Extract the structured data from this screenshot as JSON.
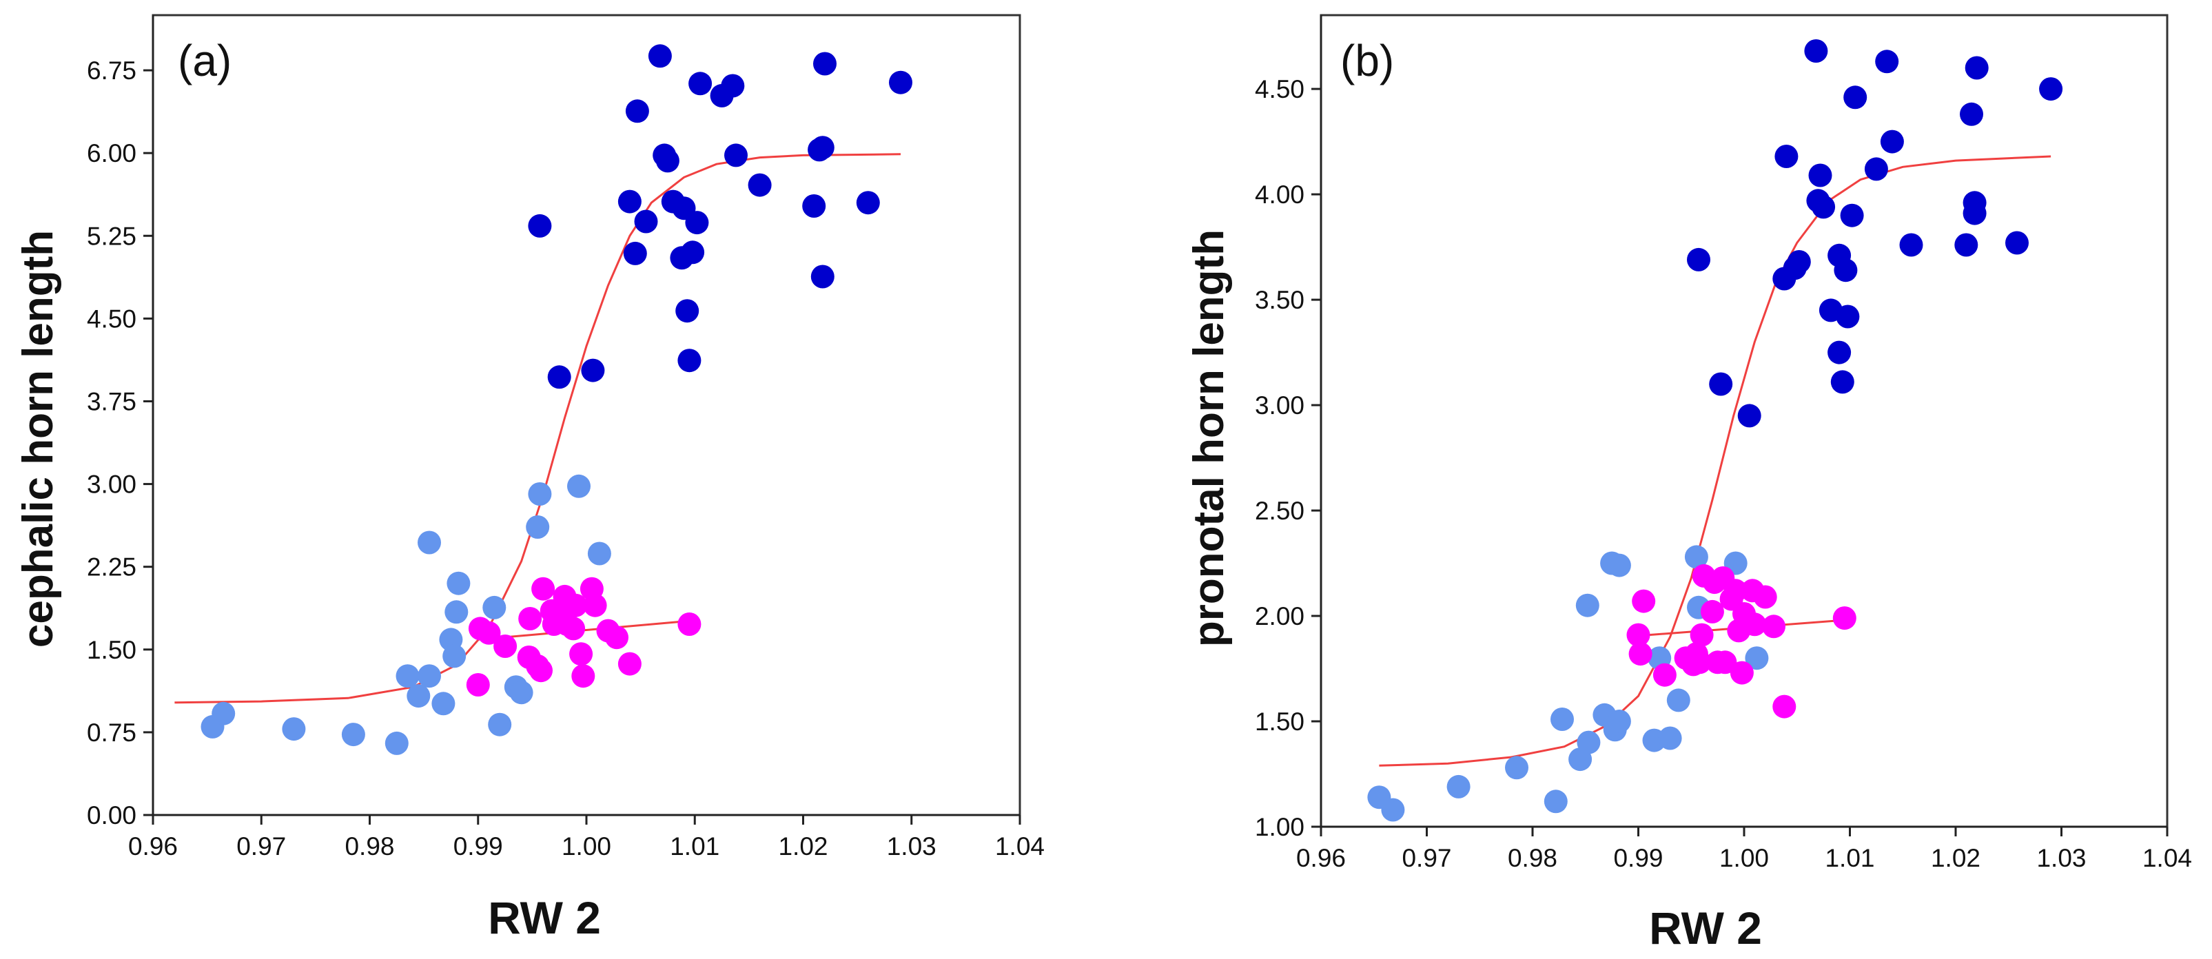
{
  "chart_data": [
    {
      "type": "scatter",
      "panel_label": "(a)",
      "xlabel": "RW 2",
      "ylabel": "cephalic horn length",
      "xlim": [
        0.96,
        1.04
      ],
      "ylim": [
        0,
        7.25
      ],
      "x_ticks": [
        "0.96",
        "0.97",
        "0.98",
        "0.99",
        "1.00",
        "1.01",
        "1.02",
        "1.03",
        "1.04"
      ],
      "y_ticks": [
        "0.00",
        "0.75",
        "1.50",
        "2.25",
        "3.00",
        "3.75",
        "4.50",
        "5.25",
        "6.00",
        "6.75"
      ],
      "series": [
        {
          "name": "light blue",
          "color": "#6495ED",
          "points": [
            [
              0.9655,
              0.8
            ],
            [
              0.9665,
              0.92
            ],
            [
              0.973,
              0.78
            ],
            [
              0.9785,
              0.73
            ],
            [
              0.9825,
              0.65
            ],
            [
              0.9835,
              1.26
            ],
            [
              0.9845,
              1.08
            ],
            [
              0.9855,
              1.26
            ],
            [
              0.9855,
              2.47
            ],
            [
              0.9868,
              1.01
            ],
            [
              0.9875,
              1.59
            ],
            [
              0.9878,
              1.44
            ],
            [
              0.988,
              1.84
            ],
            [
              0.9882,
              2.1
            ],
            [
              0.9915,
              1.88
            ],
            [
              0.992,
              0.82
            ],
            [
              0.9935,
              1.16
            ],
            [
              0.994,
              1.11
            ],
            [
              0.9955,
              2.61
            ],
            [
              0.9957,
              2.91
            ],
            [
              0.9993,
              2.98
            ],
            [
              1.0012,
              2.37
            ]
          ]
        },
        {
          "name": "magenta",
          "color": "#FF00FF",
          "points": [
            [
              0.99,
              1.18
            ],
            [
              0.9902,
              1.69
            ],
            [
              0.991,
              1.65
            ],
            [
              0.9925,
              1.53
            ],
            [
              0.9947,
              1.43
            ],
            [
              0.9948,
              1.78
            ],
            [
              0.9955,
              1.35
            ],
            [
              0.9958,
              1.31
            ],
            [
              0.996,
              2.05
            ],
            [
              0.9968,
              1.85
            ],
            [
              0.997,
              1.73
            ],
            [
              0.9972,
              1.82
            ],
            [
              0.9975,
              1.78
            ],
            [
              0.998,
              1.98
            ],
            [
              0.9982,
              1.73
            ],
            [
              0.9985,
              1.88
            ],
            [
              0.9988,
              1.69
            ],
            [
              0.999,
              1.9
            ],
            [
              0.9995,
              1.46
            ],
            [
              0.9997,
              1.26
            ],
            [
              1.0005,
              2.05
            ],
            [
              1.0008,
              1.9
            ],
            [
              1.002,
              1.67
            ],
            [
              1.0028,
              1.61
            ],
            [
              1.004,
              1.37
            ],
            [
              1.0095,
              1.73
            ]
          ]
        },
        {
          "name": "dark blue",
          "color": "#0000CD",
          "points": [
            [
              0.9957,
              5.34
            ],
            [
              0.9975,
              3.97
            ],
            [
              1.0006,
              4.03
            ],
            [
              1.004,
              5.56
            ],
            [
              1.0045,
              5.09
            ],
            [
              1.0047,
              6.38
            ],
            [
              1.0055,
              5.38
            ],
            [
              1.0068,
              6.88
            ],
            [
              1.0072,
              5.98
            ],
            [
              1.0075,
              5.93
            ],
            [
              1.008,
              5.56
            ],
            [
              1.0088,
              5.05
            ],
            [
              1.009,
              5.5
            ],
            [
              1.0093,
              4.57
            ],
            [
              1.0095,
              4.12
            ],
            [
              1.0098,
              5.1
            ],
            [
              1.0102,
              5.37
            ],
            [
              1.0105,
              6.63
            ],
            [
              1.0125,
              6.52
            ],
            [
              1.0135,
              6.61
            ],
            [
              1.0138,
              5.98
            ],
            [
              1.016,
              5.71
            ],
            [
              1.021,
              5.52
            ],
            [
              1.0215,
              6.03
            ],
            [
              1.0218,
              6.05
            ],
            [
              1.0218,
              4.88
            ],
            [
              1.022,
              6.81
            ],
            [
              1.026,
              5.55
            ],
            [
              1.029,
              6.64
            ]
          ]
        }
      ],
      "curve": {
        "name": "sigmoid fit",
        "color": "#F04040",
        "points": [
          [
            0.962,
            1.02
          ],
          [
            0.97,
            1.03
          ],
          [
            0.978,
            1.06
          ],
          [
            0.984,
            1.16
          ],
          [
            0.988,
            1.36
          ],
          [
            0.991,
            1.7
          ],
          [
            0.994,
            2.3
          ],
          [
            0.996,
            2.9
          ],
          [
            0.998,
            3.6
          ],
          [
            1.0,
            4.25
          ],
          [
            1.002,
            4.8
          ],
          [
            1.004,
            5.25
          ],
          [
            1.006,
            5.55
          ],
          [
            1.009,
            5.78
          ],
          [
            1.012,
            5.9
          ],
          [
            1.016,
            5.96
          ],
          [
            1.02,
            5.98
          ],
          [
            1.029,
            5.99
          ]
        ]
      },
      "line": {
        "name": "linear fit",
        "color": "#F04040",
        "points": [
          [
            0.99,
            1.59
          ],
          [
            1.0095,
            1.76
          ]
        ]
      }
    },
    {
      "type": "scatter",
      "panel_label": "(b)",
      "xlabel": "RW 2",
      "ylabel": "pronotal horn length",
      "xlim": [
        0.96,
        1.04
      ],
      "ylim": [
        1.0,
        4.85
      ],
      "x_ticks": [
        "0.96",
        "0.97",
        "0.98",
        "0.99",
        "1.00",
        "1.01",
        "1.02",
        "1.03",
        "1.04"
      ],
      "y_ticks": [
        "1.00",
        "1.50",
        "2.00",
        "2.50",
        "3.00",
        "3.50",
        "4.00",
        "4.50"
      ],
      "series": [
        {
          "name": "light blue",
          "color": "#6495ED",
          "points": [
            [
              0.9655,
              1.14
            ],
            [
              0.9668,
              1.08
            ],
            [
              0.973,
              1.19
            ],
            [
              0.9785,
              1.28
            ],
            [
              0.9822,
              1.12
            ],
            [
              0.9828,
              1.51
            ],
            [
              0.9845,
              1.32
            ],
            [
              0.9852,
              2.05
            ],
            [
              0.9853,
              1.4
            ],
            [
              0.9868,
              1.53
            ],
            [
              0.9875,
              2.25
            ],
            [
              0.9878,
              1.46
            ],
            [
              0.9882,
              1.5
            ],
            [
              0.9882,
              2.24
            ],
            [
              0.9915,
              1.41
            ],
            [
              0.992,
              1.8
            ],
            [
              0.993,
              1.42
            ],
            [
              0.9938,
              1.6
            ],
            [
              0.9955,
              2.28
            ],
            [
              0.9957,
              2.04
            ],
            [
              0.9992,
              2.25
            ],
            [
              1.0012,
              1.8
            ]
          ]
        },
        {
          "name": "magenta",
          "color": "#FF00FF",
          "points": [
            [
              0.99,
              1.91
            ],
            [
              0.9902,
              1.82
            ],
            [
              0.9905,
              2.07
            ],
            [
              0.9925,
              1.72
            ],
            [
              0.9945,
              1.8
            ],
            [
              0.9952,
              1.77
            ],
            [
              0.9955,
              1.82
            ],
            [
              0.9958,
              1.78
            ],
            [
              0.996,
              1.91
            ],
            [
              0.9962,
              2.19
            ],
            [
              0.997,
              2.02
            ],
            [
              0.9972,
              2.16
            ],
            [
              0.9975,
              1.78
            ],
            [
              0.998,
              2.18
            ],
            [
              0.9982,
              1.78
            ],
            [
              0.9988,
              2.08
            ],
            [
              0.9992,
              2.12
            ],
            [
              0.9995,
              1.93
            ],
            [
              0.9998,
              1.73
            ],
            [
              1.0,
              2.01
            ],
            [
              1.0008,
              2.12
            ],
            [
              1.001,
              1.96
            ],
            [
              1.002,
              2.09
            ],
            [
              1.0028,
              1.95
            ],
            [
              1.0038,
              1.57
            ],
            [
              1.0095,
              1.99
            ]
          ]
        },
        {
          "name": "dark blue",
          "color": "#0000CD",
          "points": [
            [
              0.9957,
              3.69
            ],
            [
              0.9978,
              3.1
            ],
            [
              1.0005,
              2.95
            ],
            [
              1.0038,
              3.6
            ],
            [
              1.004,
              4.18
            ],
            [
              1.0048,
              3.65
            ],
            [
              1.0052,
              3.68
            ],
            [
              1.0068,
              4.68
            ],
            [
              1.007,
              3.97
            ],
            [
              1.0072,
              4.09
            ],
            [
              1.0075,
              3.94
            ],
            [
              1.0082,
              3.45
            ],
            [
              1.009,
              3.71
            ],
            [
              1.009,
              3.25
            ],
            [
              1.0093,
              3.11
            ],
            [
              1.0096,
              3.64
            ],
            [
              1.0098,
              3.42
            ],
            [
              1.0102,
              3.9
            ],
            [
              1.0105,
              4.46
            ],
            [
              1.0125,
              4.12
            ],
            [
              1.0135,
              4.63
            ],
            [
              1.014,
              4.25
            ],
            [
              1.0158,
              3.76
            ],
            [
              1.021,
              3.76
            ],
            [
              1.0215,
              4.38
            ],
            [
              1.0218,
              3.96
            ],
            [
              1.0218,
              3.91
            ],
            [
              1.022,
              4.6
            ],
            [
              1.0258,
              3.77
            ],
            [
              1.029,
              4.5
            ]
          ]
        }
      ],
      "curve": {
        "name": "sigmoid fit",
        "color": "#F04040",
        "points": [
          [
            0.9655,
            1.29
          ],
          [
            0.972,
            1.3
          ],
          [
            0.978,
            1.33
          ],
          [
            0.983,
            1.38
          ],
          [
            0.987,
            1.48
          ],
          [
            0.99,
            1.62
          ],
          [
            0.993,
            1.9
          ],
          [
            0.995,
            2.18
          ],
          [
            0.997,
            2.55
          ],
          [
            0.999,
            2.95
          ],
          [
            1.001,
            3.3
          ],
          [
            1.003,
            3.58
          ],
          [
            1.005,
            3.77
          ],
          [
            1.008,
            3.97
          ],
          [
            1.011,
            4.07
          ],
          [
            1.015,
            4.13
          ],
          [
            1.02,
            4.16
          ],
          [
            1.029,
            4.18
          ]
        ]
      },
      "line": {
        "name": "linear fit",
        "color": "#F04040",
        "points": [
          [
            0.991,
            1.91
          ],
          [
            1.0095,
            1.98
          ]
        ]
      }
    }
  ]
}
